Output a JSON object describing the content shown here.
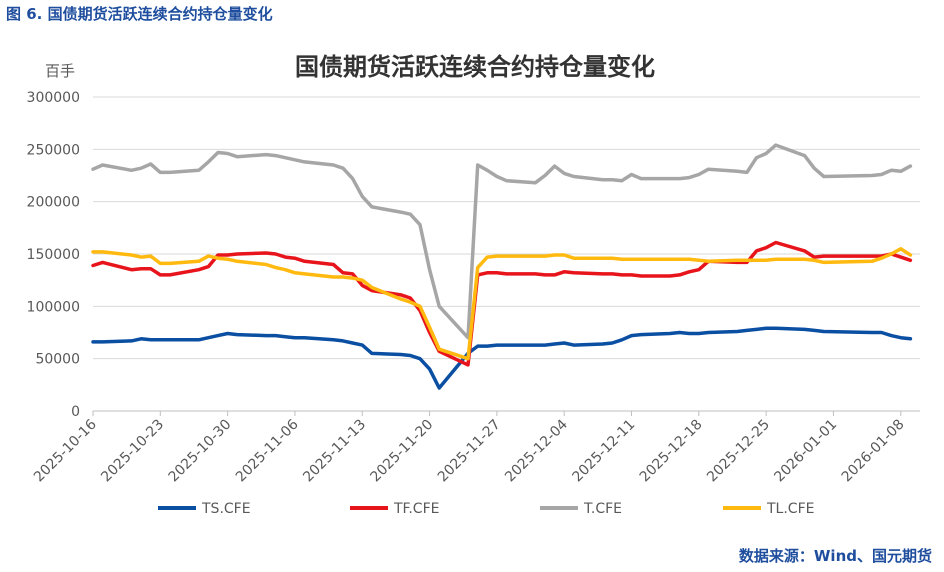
{
  "figure_caption": "图 6. 国债期货活跃连续合约持仓量变化",
  "source_note": "数据来源：Wind、国元期货",
  "colors": {
    "caption": "#1f4e9e",
    "grid": "#d9d9d9",
    "axis_text": "#595959"
  },
  "chart_data": {
    "type": "line",
    "title": "国债期货活跃连续合约持仓量变化",
    "ylabel": "百手",
    "xlabel": "",
    "ylim": [
      0,
      300000
    ],
    "yticks": [
      0,
      50000,
      100000,
      150000,
      200000,
      250000,
      300000
    ],
    "ytick_labels": [
      "0",
      "50000",
      "100000",
      "150000",
      "200000",
      "250000",
      "300000"
    ],
    "xlim": [
      "2025-10-16",
      "2026-01-10"
    ],
    "xticks": [
      "2025-10-16",
      "2025-10-23",
      "2025-10-30",
      "2025-11-06",
      "2025-11-13",
      "2025-11-20",
      "2025-11-27",
      "2025-12-04",
      "2025-12-11",
      "2025-12-18",
      "2025-12-25",
      "2026-01-01",
      "2026-01-08"
    ],
    "grid": true,
    "legend": "bottom",
    "x": [
      "2025-10-16",
      "2025-10-17",
      "2025-10-20",
      "2025-10-21",
      "2025-10-22",
      "2025-10-23",
      "2025-10-24",
      "2025-10-27",
      "2025-10-28",
      "2025-10-29",
      "2025-10-30",
      "2025-10-31",
      "2025-11-03",
      "2025-11-04",
      "2025-11-05",
      "2025-11-06",
      "2025-11-07",
      "2025-11-10",
      "2025-11-11",
      "2025-11-12",
      "2025-11-13",
      "2025-11-14",
      "2025-11-17",
      "2025-11-18",
      "2025-11-19",
      "2025-11-20",
      "2025-11-21",
      "2025-11-24",
      "2025-11-25",
      "2025-11-26",
      "2025-11-27",
      "2025-11-28",
      "2025-12-01",
      "2025-12-02",
      "2025-12-03",
      "2025-12-04",
      "2025-12-05",
      "2025-12-08",
      "2025-12-09",
      "2025-12-10",
      "2025-12-11",
      "2025-12-12",
      "2025-12-15",
      "2025-12-16",
      "2025-12-17",
      "2025-12-18",
      "2025-12-19",
      "2025-12-22",
      "2025-12-23",
      "2025-12-24",
      "2025-12-25",
      "2025-12-26",
      "2025-12-29",
      "2025-12-30",
      "2025-12-31",
      "2026-01-05",
      "2026-01-06",
      "2026-01-07",
      "2026-01-08",
      "2026-01-09"
    ],
    "series": [
      {
        "name": "TS.CFE",
        "color": "#0b4fa3",
        "values": [
          66000,
          66000,
          67000,
          69000,
          68000,
          68000,
          68000,
          68000,
          70000,
          72000,
          74000,
          73000,
          72000,
          72000,
          71000,
          70000,
          70000,
          68000,
          67000,
          65000,
          63000,
          55000,
          54000,
          53000,
          50000,
          40000,
          22000,
          55000,
          62000,
          62000,
          63000,
          63000,
          63000,
          63000,
          64000,
          65000,
          63000,
          64000,
          65000,
          68000,
          72000,
          73000,
          74000,
          75000,
          74000,
          74000,
          75000,
          76000,
          77000,
          78000,
          79000,
          79000,
          78000,
          77000,
          76000,
          75000,
          75000,
          72000,
          70000,
          69000
        ]
      },
      {
        "name": "TF.CFE",
        "color": "#e8141b",
        "values": [
          139000,
          142000,
          135000,
          136000,
          136000,
          130000,
          130000,
          135000,
          138000,
          149000,
          149000,
          150000,
          151000,
          150000,
          147000,
          146000,
          143000,
          140000,
          132000,
          131000,
          120000,
          115000,
          111000,
          108000,
          96000,
          75000,
          57000,
          44000,
          130000,
          132000,
          132000,
          131000,
          131000,
          130000,
          130000,
          133000,
          132000,
          131000,
          131000,
          130000,
          130000,
          129000,
          129000,
          130000,
          133000,
          135000,
          143000,
          142000,
          142000,
          153000,
          156000,
          161000,
          153000,
          147000,
          148000,
          148000,
          148000,
          150000,
          147000,
          144000
        ]
      },
      {
        "name": "T.CFE",
        "color": "#a6a6a6",
        "values": [
          231000,
          235000,
          230000,
          232000,
          236000,
          228000,
          228000,
          230000,
          238000,
          247000,
          246000,
          243000,
          245000,
          244000,
          242000,
          240000,
          238000,
          235000,
          232000,
          222000,
          205000,
          195000,
          190000,
          188000,
          178000,
          135000,
          100000,
          70000,
          235000,
          230000,
          224000,
          220000,
          218000,
          225000,
          234000,
          227000,
          224000,
          221000,
          221000,
          220000,
          226000,
          222000,
          222000,
          222000,
          223000,
          226000,
          231000,
          229000,
          228000,
          242000,
          246000,
          254000,
          244000,
          232000,
          224000,
          225000,
          226000,
          230000,
          229000,
          234000
        ]
      },
      {
        "name": "TL.CFE",
        "color": "#ffb90f",
        "values": [
          152000,
          152000,
          149000,
          147000,
          148000,
          141000,
          141000,
          143000,
          148000,
          146000,
          145000,
          143000,
          140000,
          137000,
          135000,
          132000,
          131000,
          128000,
          128000,
          127000,
          125000,
          118000,
          107000,
          104000,
          100000,
          80000,
          59000,
          50000,
          137000,
          147000,
          148000,
          148000,
          148000,
          148000,
          149000,
          149000,
          146000,
          146000,
          146000,
          145000,
          145000,
          145000,
          145000,
          145000,
          145000,
          144000,
          143000,
          144000,
          144000,
          144000,
          144000,
          145000,
          145000,
          144000,
          142000,
          143000,
          146000,
          150000,
          155000,
          149000
        ]
      }
    ]
  }
}
